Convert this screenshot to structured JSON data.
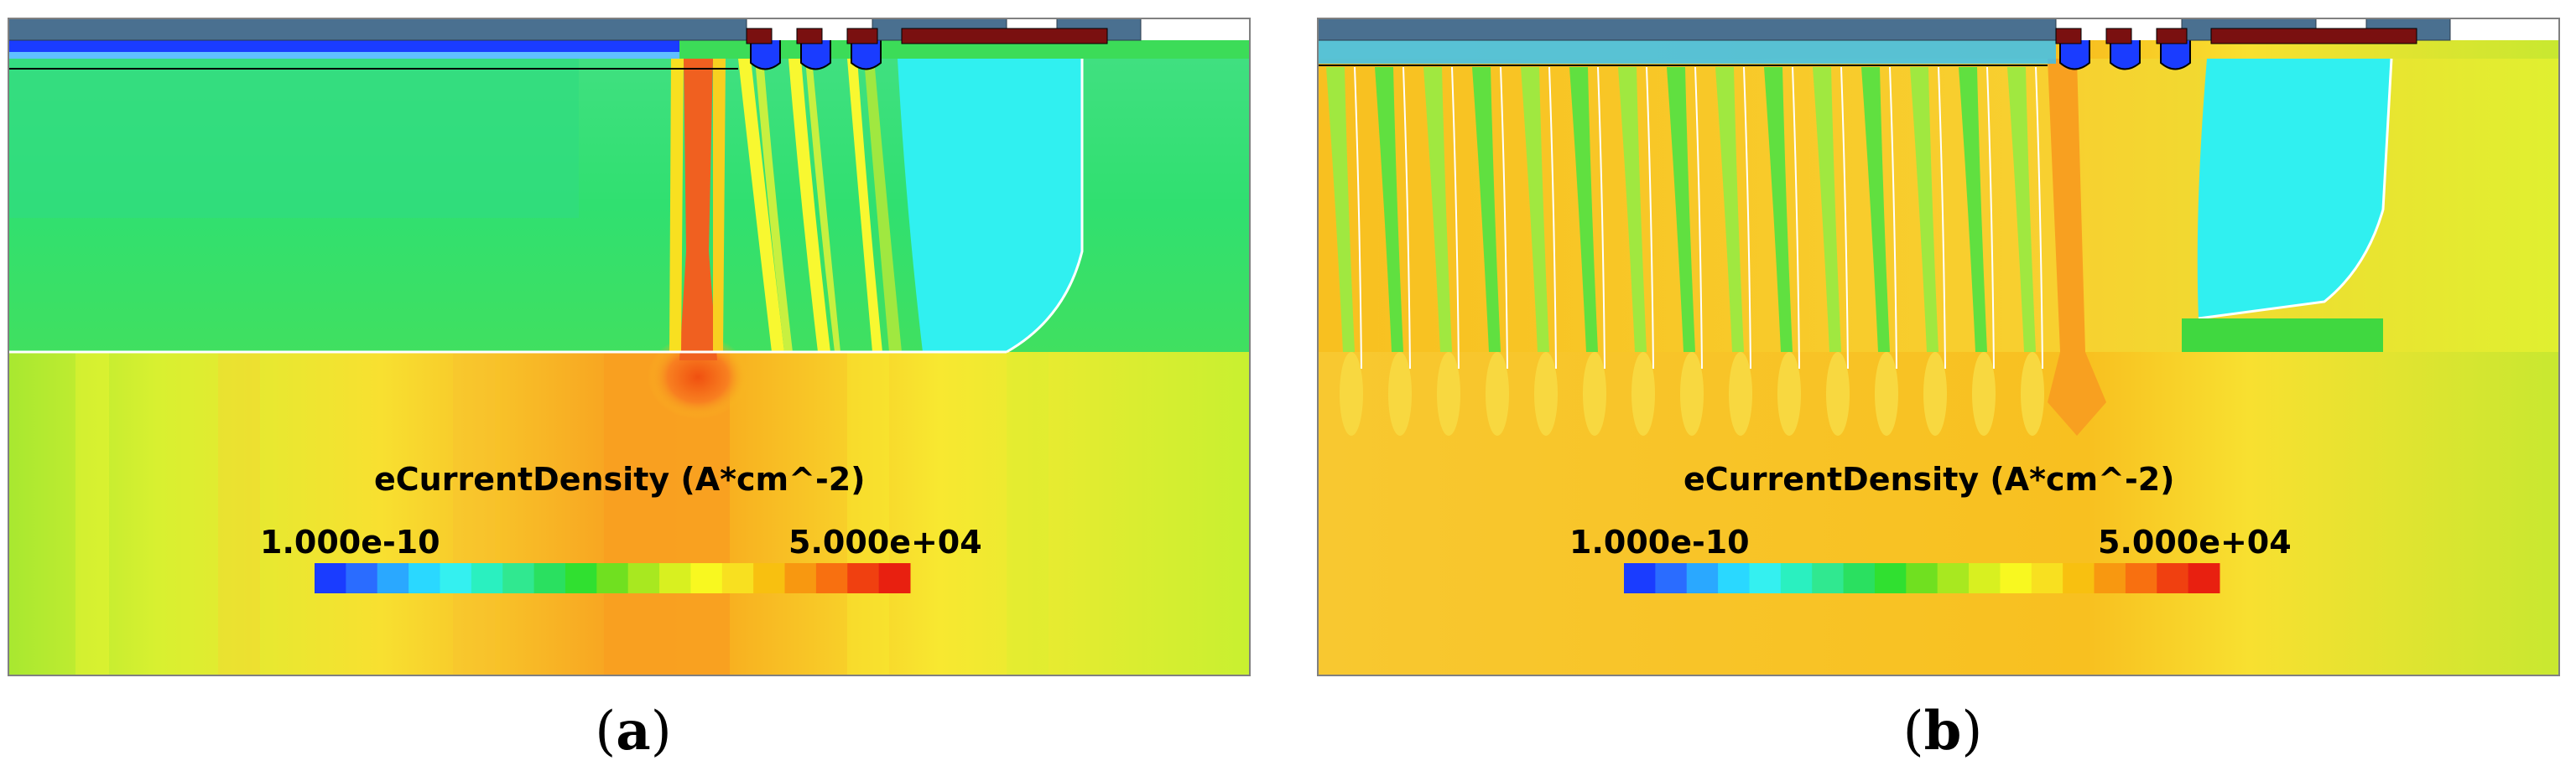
{
  "panels": [
    {
      "id": "a",
      "caption_letter": "a",
      "colorbar": {
        "title": "eCurrentDensity (A*cm^-2)",
        "min_label": "1.000e-10",
        "max_label": "5.000e+04"
      }
    },
    {
      "id": "b",
      "caption_letter": "b",
      "colorbar": {
        "title": "eCurrentDensity (A*cm^-2)",
        "min_label": "1.000e-10",
        "max_label": "5.000e+04"
      }
    }
  ],
  "colormap": [
    "#1a3cff",
    "#2a6cff",
    "#2aa8ff",
    "#2ad8ff",
    "#34f0f0",
    "#2af0c0",
    "#30e890",
    "#2ae060",
    "#30e030",
    "#70e020",
    "#a8e820",
    "#d8f020",
    "#f8f820",
    "#f8e020",
    "#f8c010",
    "#f89810",
    "#f87010",
    "#f04010",
    "#e82010"
  ]
}
